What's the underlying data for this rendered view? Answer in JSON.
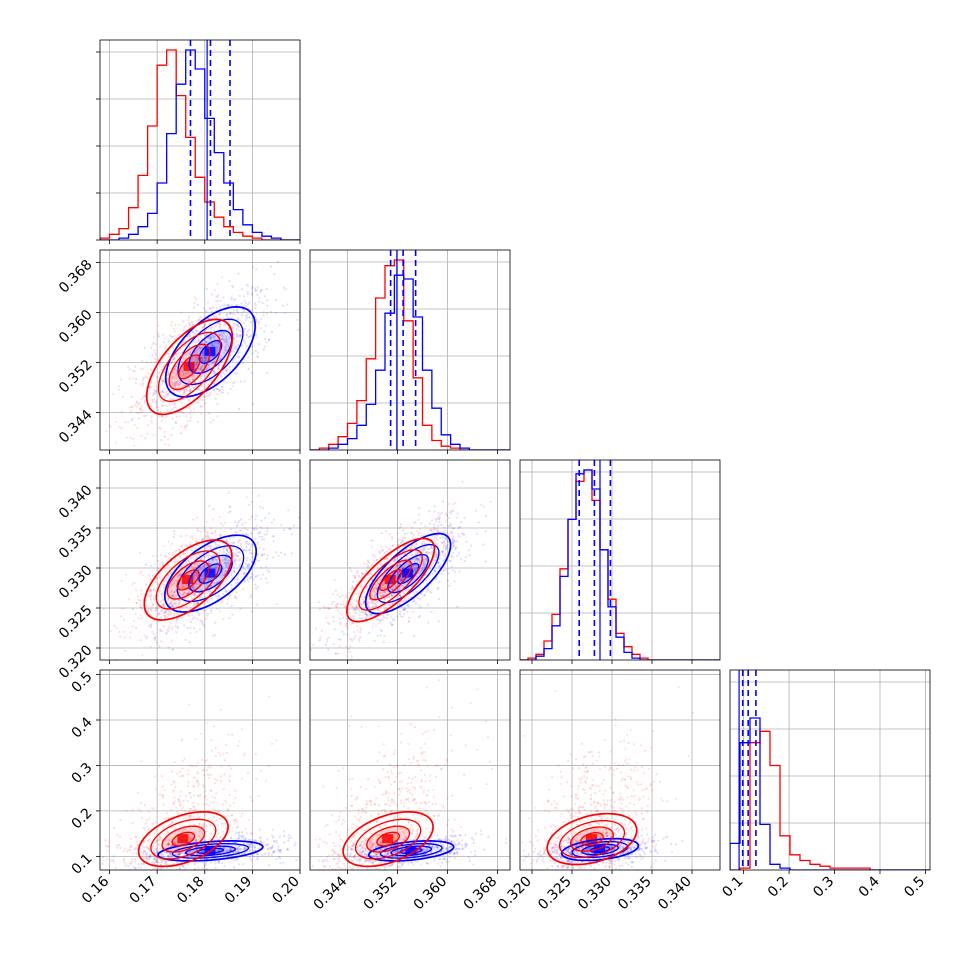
{
  "chart_data": {
    "type": "corner",
    "grid": true,
    "colors": {
      "red_series": "#ff0000",
      "blue_series": "#0000ff"
    },
    "parameters": [
      {
        "ticks": [
          0.16,
          0.17,
          0.18,
          0.19,
          0.2
        ],
        "tick_labels": [
          "0.16",
          "0.17",
          "0.18",
          "0.19",
          "0.20"
        ],
        "range": [
          0.158,
          0.2
        ]
      },
      {
        "ticks": [
          0.344,
          0.352,
          0.36,
          0.368
        ],
        "tick_labels": [
          "0.344",
          "0.352",
          "0.360",
          "0.368"
        ],
        "range": [
          0.338,
          0.37
        ]
      },
      {
        "ticks": [
          0.32,
          0.325,
          0.33,
          0.335,
          0.34
        ],
        "tick_labels": [
          "0.320",
          "0.325",
          "0.330",
          "0.335",
          "0.340"
        ],
        "range": [
          0.3185,
          0.3435
        ]
      },
      {
        "ticks": [
          0.1,
          0.2,
          0.3,
          0.4,
          0.5
        ],
        "tick_labels": [
          "0.1",
          "0.2",
          "0.3",
          "0.4",
          "0.5"
        ],
        "range": [
          0.07,
          0.51
        ]
      }
    ],
    "marginals": [
      {
        "param": 0,
        "red_hist": {
          "edges_start": 0.158,
          "bin_width": 0.002,
          "counts": [
            1,
            3,
            6,
            17,
            34,
            60,
            92,
            100,
            76,
            54,
            33,
            20,
            12,
            7,
            4,
            2,
            1,
            0,
            0,
            0,
            0
          ]
        },
        "blue_hist": {
          "edges_start": 0.158,
          "bin_width": 0.002,
          "counts": [
            0,
            0,
            1,
            3,
            7,
            14,
            30,
            56,
            82,
            100,
            90,
            64,
            46,
            30,
            16,
            8,
            4,
            2,
            1,
            0,
            0
          ]
        },
        "quantiles": [
          0.177,
          0.1812,
          0.1853
        ],
        "blue_center_line": 0.1805
      },
      {
        "param": 1,
        "red_hist": {
          "edges_start": 0.338,
          "bin_width": 0.0015,
          "counts": [
            0,
            1,
            3,
            7,
            14,
            26,
            48,
            80,
            97,
            100,
            68,
            38,
            13,
            5,
            2,
            1,
            0,
            0,
            0,
            0,
            0,
            0
          ]
        },
        "blue_hist": {
          "edges_start": 0.338,
          "bin_width": 0.0015,
          "counts": [
            0,
            0,
            1,
            3,
            6,
            13,
            24,
            42,
            72,
            92,
            90,
            70,
            42,
            22,
            8,
            3,
            1,
            0,
            0,
            0,
            0,
            0
          ]
        },
        "quantiles": [
          0.3509,
          0.3529,
          0.3549
        ],
        "blue_center_line": 0.3519
      },
      {
        "param": 2,
        "red_hist": {
          "edges_start": 0.3185,
          "bin_width": 0.001,
          "counts": [
            0,
            1,
            3,
            10,
            24,
            48,
            74,
            94,
            100,
            84,
            58,
            32,
            14,
            7,
            3,
            1,
            0,
            0,
            0,
            0,
            0,
            0,
            0,
            0,
            0
          ]
        },
        "blue_hist": {
          "edges_start": 0.3185,
          "bin_width": 0.001,
          "counts": [
            0,
            0,
            2,
            6,
            18,
            44,
            74,
            98,
            100,
            90,
            58,
            28,
            12,
            4,
            1,
            0,
            0,
            0,
            0,
            0,
            0,
            0,
            0,
            0,
            0
          ]
        },
        "quantiles": [
          0.3259,
          0.3278,
          0.3298
        ],
        "blue_center_line": 0.3285
      },
      {
        "param": 3,
        "red_hist": {
          "edges_start": 0.07,
          "bin_width": 0.022,
          "counts": [
            0,
            1,
            67,
            73,
            55,
            18,
            8,
            5,
            3,
            2,
            1,
            1,
            1,
            1,
            0,
            0,
            0,
            0,
            0,
            0
          ]
        },
        "blue_hist": {
          "edges_start": 0.07,
          "bin_width": 0.022,
          "counts": [
            14,
            67,
            80,
            24,
            3,
            1,
            0,
            0,
            0,
            0,
            0,
            0,
            0,
            0,
            0,
            0,
            0,
            0,
            0,
            0
          ]
        },
        "quantiles": [
          0.098,
          0.11,
          0.127
        ],
        "blue_center_line": 0.09
      }
    ],
    "pairs": [
      {
        "x": 0,
        "y": 1,
        "red": {
          "cx": 0.1768,
          "cy": 0.3513,
          "sx": 0.0045,
          "sy": 0.0038,
          "rho": 0.62
        },
        "blue": {
          "cx": 0.1812,
          "cy": 0.3537,
          "sx": 0.0047,
          "sy": 0.0036,
          "rho": 0.58
        }
      },
      {
        "x": 0,
        "y": 2,
        "red": {
          "cx": 0.1765,
          "cy": 0.3285,
          "sx": 0.0046,
          "sy": 0.0025,
          "rho": 0.6
        },
        "blue": {
          "cx": 0.1812,
          "cy": 0.3293,
          "sx": 0.0048,
          "sy": 0.0024,
          "rho": 0.58
        }
      },
      {
        "x": 1,
        "y": 2,
        "red": {
          "cx": 0.3509,
          "cy": 0.3285,
          "sx": 0.0035,
          "sy": 0.0026,
          "rho": 0.75
        },
        "blue": {
          "cx": 0.3537,
          "cy": 0.3293,
          "sx": 0.0034,
          "sy": 0.0025,
          "rho": 0.72
        }
      },
      {
        "x": 0,
        "y": 3,
        "red": {
          "cx": 0.1755,
          "cy": 0.138,
          "sx": 0.0047,
          "sy": 0.03,
          "rho": 0.45
        },
        "blue": {
          "cx": 0.1812,
          "cy": 0.112,
          "sx": 0.0055,
          "sy": 0.011,
          "rho": 0.4
        }
      },
      {
        "x": 1,
        "y": 3,
        "red": {
          "cx": 0.3505,
          "cy": 0.138,
          "sx": 0.0036,
          "sy": 0.03,
          "rho": 0.45
        },
        "blue": {
          "cx": 0.3542,
          "cy": 0.112,
          "sx": 0.0034,
          "sy": 0.011,
          "rho": 0.4
        }
      },
      {
        "x": 2,
        "y": 3,
        "red": {
          "cx": 0.3275,
          "cy": 0.138,
          "sx": 0.0028,
          "sy": 0.028,
          "rho": 0.35
        },
        "blue": {
          "cx": 0.3285,
          "cy": 0.115,
          "sx": 0.0024,
          "sy": 0.012,
          "rho": 0.35
        }
      }
    ]
  }
}
